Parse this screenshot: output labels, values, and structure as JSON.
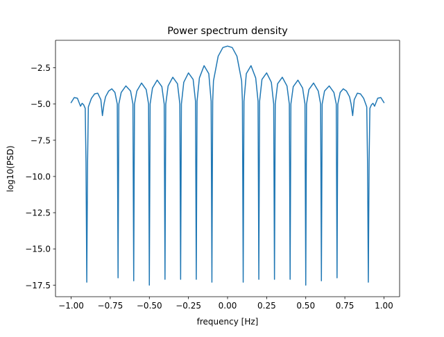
{
  "chart_data": {
    "type": "line",
    "title": "Power spectrum density",
    "xlabel": "frequency [Hz]",
    "ylabel": "log10(PSD)",
    "xlim": [
      -1.1,
      1.1
    ],
    "ylim": [
      -18.3,
      -0.6
    ],
    "xticks": [
      {
        "value": -1.0,
        "label": "−1.00"
      },
      {
        "value": -0.75,
        "label": "−0.75"
      },
      {
        "value": -0.5,
        "label": "−0.50"
      },
      {
        "value": -0.25,
        "label": "−0.25"
      },
      {
        "value": 0.0,
        "label": "0.00"
      },
      {
        "value": 0.25,
        "label": "0.25"
      },
      {
        "value": 0.5,
        "label": "0.50"
      },
      {
        "value": 0.75,
        "label": "0.75"
      },
      {
        "value": 1.0,
        "label": "1.00"
      }
    ],
    "yticks": [
      {
        "value": -2.5,
        "label": "−2.5"
      },
      {
        "value": -5.0,
        "label": "−5.0"
      },
      {
        "value": -7.5,
        "label": "−7.5"
      },
      {
        "value": -10.0,
        "label": "−10.0"
      },
      {
        "value": -12.5,
        "label": "−12.5"
      },
      {
        "value": -15.0,
        "label": "−15.0"
      },
      {
        "value": -17.5,
        "label": "−17.5"
      }
    ],
    "grid": false,
    "legend": "none",
    "series": [
      {
        "color": "#1f77b4",
        "x": [
          -1.0,
          -0.98,
          -0.96,
          -0.94,
          -0.93,
          -0.92,
          -0.91,
          -0.905,
          -0.9,
          -0.895,
          -0.89,
          -0.87,
          -0.85,
          -0.83,
          -0.81,
          -0.8,
          -0.79,
          -0.78,
          -0.76,
          -0.74,
          -0.72,
          -0.705,
          -0.7,
          -0.695,
          -0.68,
          -0.65,
          -0.62,
          -0.605,
          -0.6,
          -0.595,
          -0.58,
          -0.55,
          -0.52,
          -0.505,
          -0.5,
          -0.495,
          -0.48,
          -0.45,
          -0.42,
          -0.405,
          -0.4,
          -0.395,
          -0.38,
          -0.35,
          -0.32,
          -0.305,
          -0.3,
          -0.295,
          -0.28,
          -0.25,
          -0.22,
          -0.205,
          -0.2,
          -0.195,
          -0.18,
          -0.15,
          -0.12,
          -0.105,
          -0.1,
          -0.095,
          -0.09,
          -0.06,
          -0.03,
          0.0,
          0.03,
          0.06,
          0.09,
          0.095,
          0.1,
          0.105,
          0.12,
          0.15,
          0.18,
          0.195,
          0.2,
          0.205,
          0.22,
          0.25,
          0.28,
          0.295,
          0.3,
          0.305,
          0.32,
          0.35,
          0.38,
          0.395,
          0.4,
          0.405,
          0.42,
          0.45,
          0.48,
          0.495,
          0.5,
          0.505,
          0.52,
          0.55,
          0.58,
          0.595,
          0.6,
          0.605,
          0.62,
          0.65,
          0.68,
          0.695,
          0.7,
          0.705,
          0.72,
          0.74,
          0.76,
          0.78,
          0.79,
          0.8,
          0.81,
          0.83,
          0.85,
          0.87,
          0.89,
          0.895,
          0.9,
          0.905,
          0.91,
          0.92,
          0.93,
          0.94,
          0.96,
          0.98,
          1.0
        ],
        "y": [
          -4.9,
          -4.55,
          -4.6,
          -5.15,
          -4.95,
          -5.05,
          -5.3,
          -9.0,
          -17.3,
          -9.0,
          -5.2,
          -4.6,
          -4.3,
          -4.25,
          -4.7,
          -5.8,
          -5.0,
          -4.5,
          -4.1,
          -3.95,
          -4.2,
          -5.0,
          -17.0,
          -5.0,
          -4.2,
          -3.75,
          -4.1,
          -5.0,
          -17.2,
          -5.0,
          -4.1,
          -3.55,
          -4.0,
          -5.0,
          -17.5,
          -5.0,
          -3.9,
          -3.35,
          -3.8,
          -5.0,
          -17.1,
          -5.0,
          -3.75,
          -3.15,
          -3.6,
          -5.0,
          -17.1,
          -5.0,
          -3.5,
          -2.85,
          -3.3,
          -4.8,
          -17.1,
          -4.8,
          -3.2,
          -2.35,
          -2.9,
          -4.8,
          -17.3,
          -4.8,
          -3.4,
          -1.7,
          -1.1,
          -1.0,
          -1.1,
          -1.7,
          -3.4,
          -4.8,
          -17.3,
          -4.8,
          -2.9,
          -2.35,
          -3.2,
          -4.8,
          -17.1,
          -4.8,
          -3.3,
          -2.85,
          -3.5,
          -5.0,
          -17.1,
          -5.0,
          -3.6,
          -3.15,
          -3.75,
          -5.0,
          -17.1,
          -5.0,
          -3.8,
          -3.35,
          -3.9,
          -5.0,
          -17.5,
          -5.0,
          -4.0,
          -3.55,
          -4.1,
          -5.0,
          -17.2,
          -5.0,
          -4.1,
          -3.75,
          -4.2,
          -5.0,
          -17.0,
          -5.0,
          -4.2,
          -3.95,
          -4.1,
          -4.5,
          -5.0,
          -5.8,
          -4.7,
          -4.25,
          -4.3,
          -4.6,
          -5.2,
          -9.0,
          -17.3,
          -9.0,
          -5.3,
          -5.05,
          -4.95,
          -5.15,
          -4.6,
          -4.55,
          -4.9
        ]
      }
    ]
  }
}
